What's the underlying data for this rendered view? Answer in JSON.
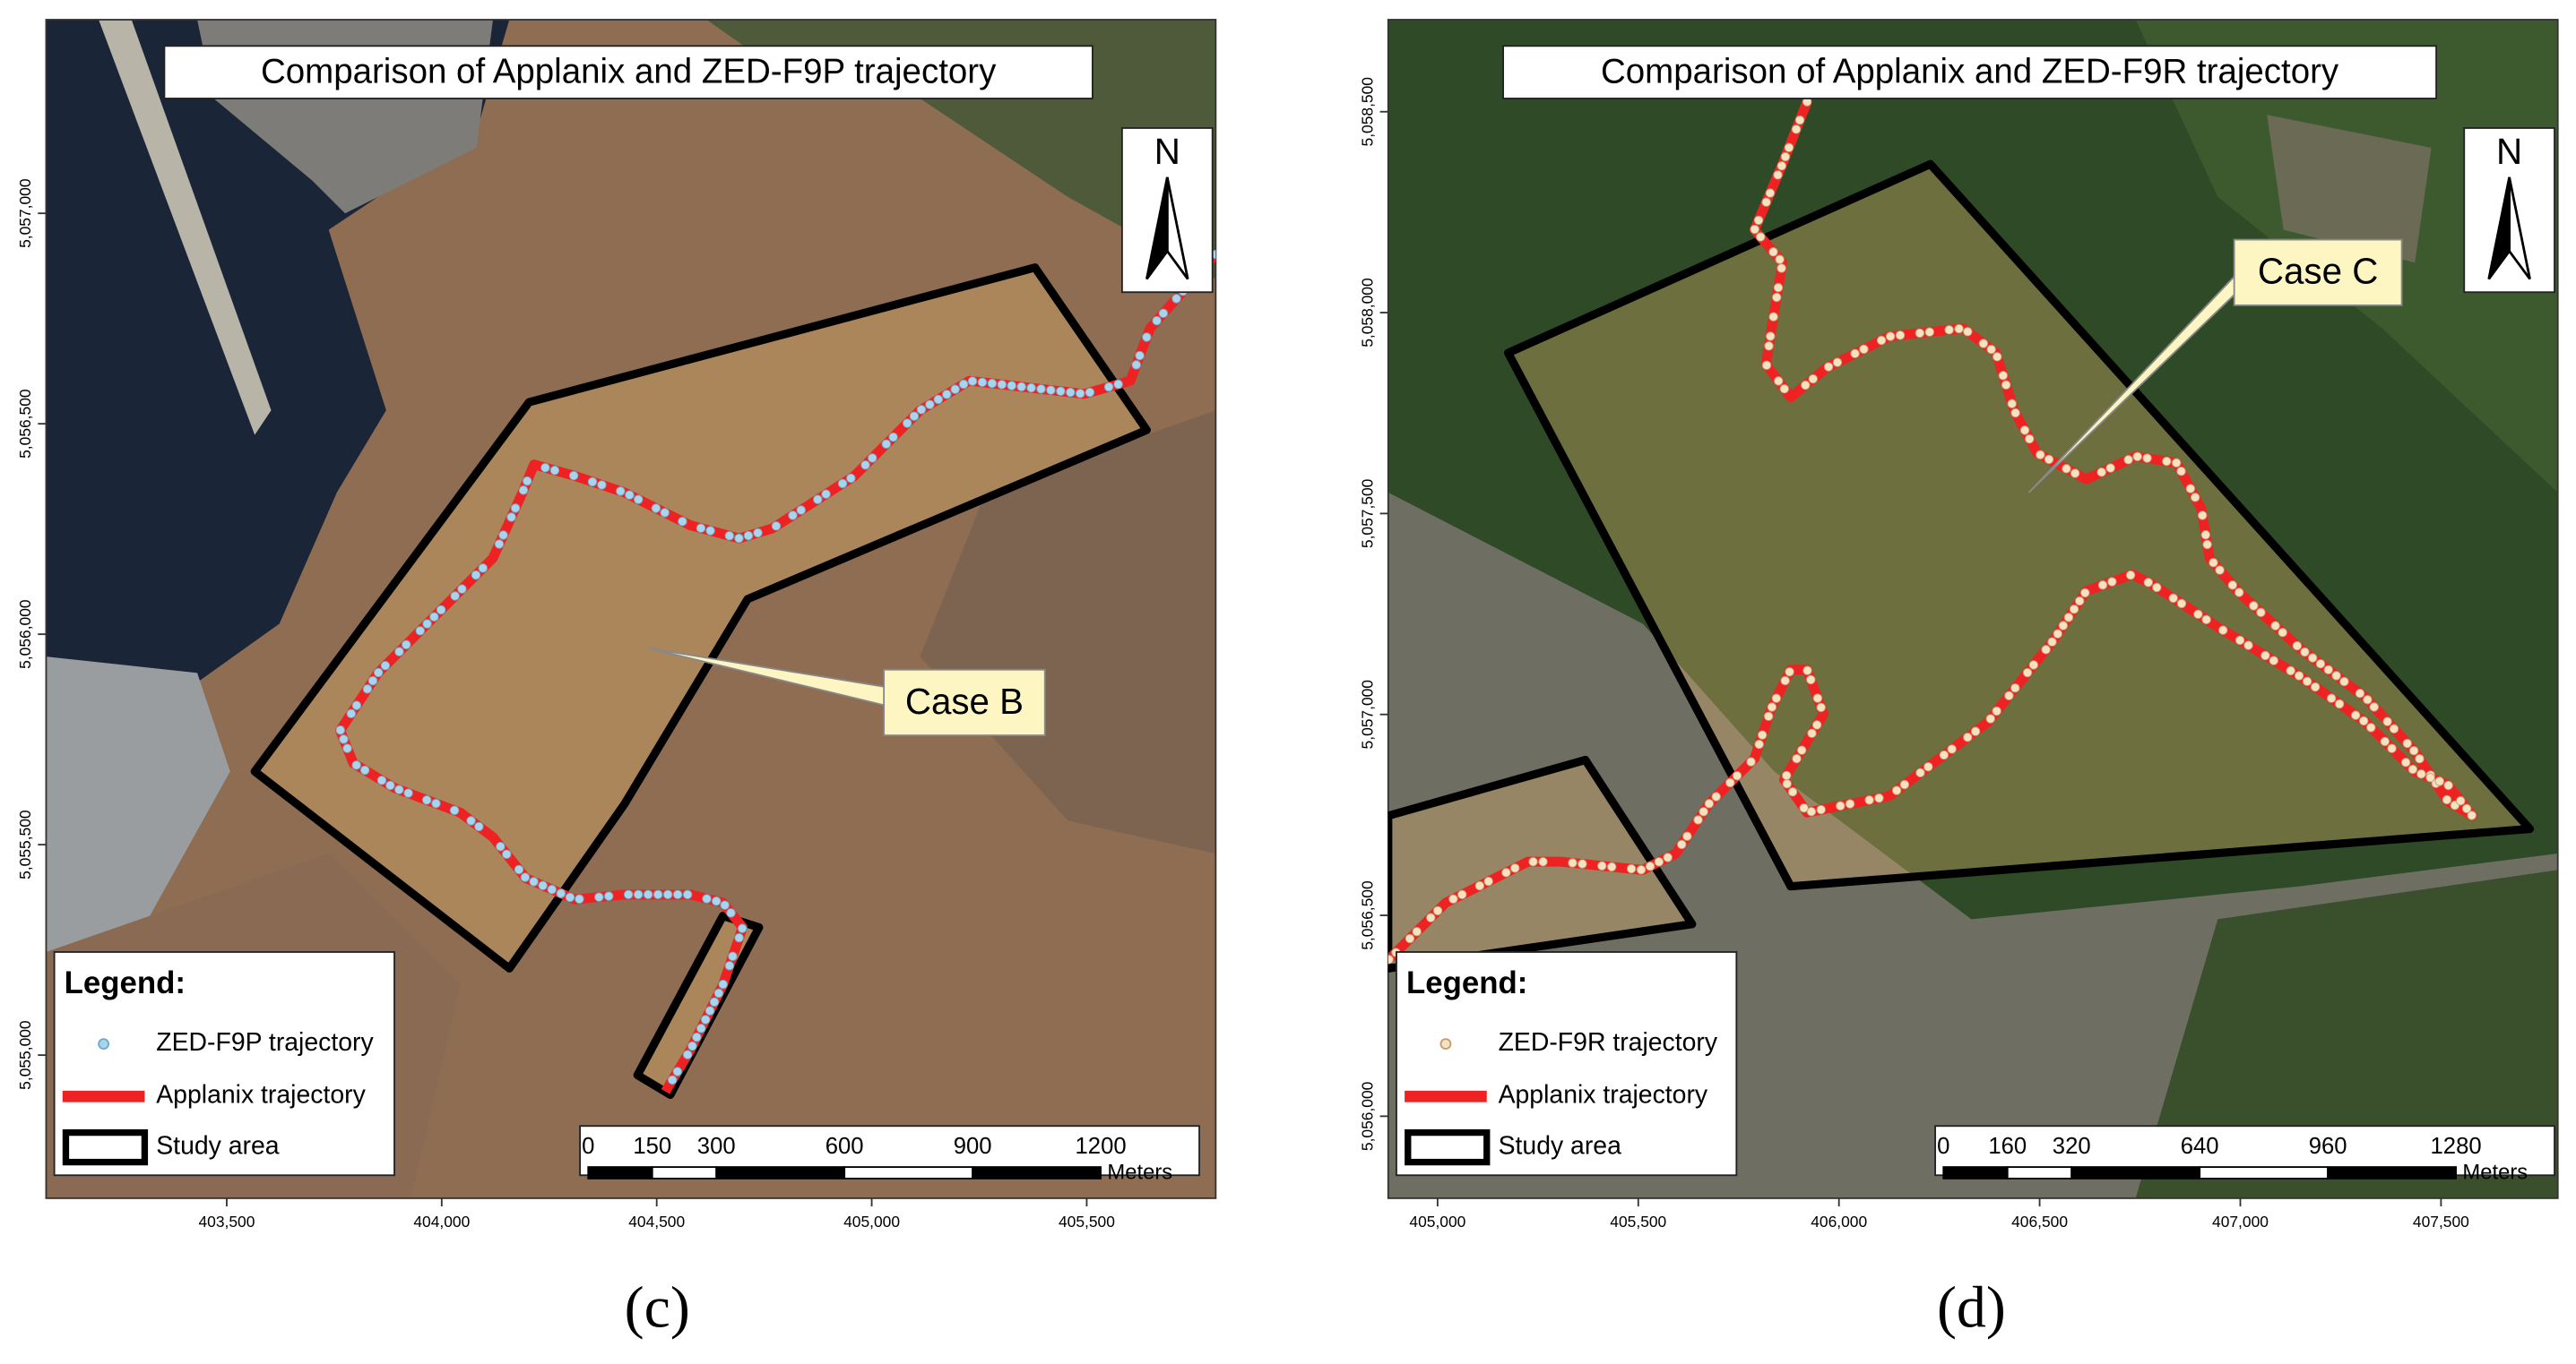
{
  "panels": [
    {
      "label": "(c)",
      "title": "Comparison of Applanix and ZED-F9P trajectory",
      "north": "N",
      "callout": "Case B",
      "legend": {
        "title": "Legend:",
        "items": [
          "ZED-F9P trajectory",
          "Applanix trajectory",
          "Study area"
        ]
      },
      "scale_bar": {
        "ticks": [
          0,
          150,
          300,
          600,
          900,
          1200
        ],
        "unit": "Meters"
      },
      "xlim": [
        403080,
        405800
      ],
      "ylim": [
        5054660,
        5057460
      ],
      "xticks": [
        {
          "value": 403500,
          "label": "403,500"
        },
        {
          "value": 404000,
          "label": "404,000"
        },
        {
          "value": 404500,
          "label": "404,500"
        },
        {
          "value": 405000,
          "label": "405,000"
        },
        {
          "value": 405500,
          "label": "405,500"
        }
      ],
      "yticks": [
        {
          "value": 5057000,
          "label": "5,057,000"
        },
        {
          "value": 5056500,
          "label": "5,056,500"
        },
        {
          "value": 5056000,
          "label": "5,056,000"
        },
        {
          "value": 5055500,
          "label": "5,055,500"
        },
        {
          "value": 5055000,
          "label": "5,055,000"
        }
      ]
    },
    {
      "label": "(d)",
      "title": "Comparison of Applanix and ZED-F9R trajectory",
      "north": "N",
      "callout": "Case C",
      "legend": {
        "title": "Legend:",
        "items": [
          "ZED-F9R trajectory",
          "Applanix trajectory",
          "Study area"
        ]
      },
      "scale_bar": {
        "ticks": [
          0,
          160,
          320,
          640,
          960,
          1280
        ],
        "unit": "Meters"
      },
      "xlim": [
        404877,
        407791
      ],
      "ylim": [
        5055796,
        5058729
      ],
      "xticks": [
        {
          "value": 405000,
          "label": "405,000"
        },
        {
          "value": 405500,
          "label": "405,500"
        },
        {
          "value": 406000,
          "label": "406,000"
        },
        {
          "value": 406500,
          "label": "406,500"
        },
        {
          "value": 407000,
          "label": "407,000"
        },
        {
          "value": 407500,
          "label": "407,500"
        }
      ],
      "yticks": [
        {
          "value": 5058500,
          "label": "5,058,500"
        },
        {
          "value": 5058000,
          "label": "5,058,000"
        },
        {
          "value": 5057500,
          "label": "5,057,500"
        },
        {
          "value": 5057000,
          "label": "5,057,000"
        },
        {
          "value": 5056500,
          "label": "5,056,500"
        },
        {
          "value": 5056000,
          "label": "5,056,000"
        }
      ]
    }
  ]
}
